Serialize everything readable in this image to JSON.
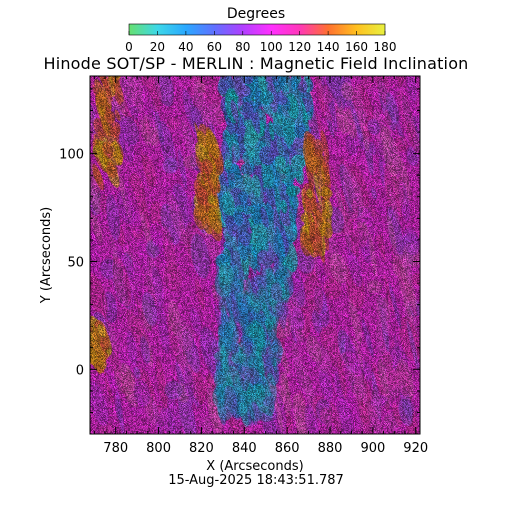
{
  "chart_data": {
    "type": "heatmap",
    "title": "Hinode SOT/SP - MERLIN : Magnetic Field Inclination",
    "xlabel": "X (Arcseconds)",
    "ylabel": "Y (Arcseconds)",
    "xlim": [
      768,
      922
    ],
    "ylim": [
      -30,
      136
    ],
    "x_ticks": [
      780,
      800,
      820,
      840,
      860,
      880,
      900,
      920
    ],
    "y_ticks": [
      0,
      50,
      100
    ],
    "colorbar": {
      "label": "Degrees",
      "range": [
        0,
        180
      ],
      "ticks": [
        0,
        20,
        40,
        60,
        80,
        100,
        120,
        140,
        160,
        180
      ],
      "colors": [
        "#66e070",
        "#3dd8e8",
        "#2aa8ff",
        "#6070ff",
        "#b040ff",
        "#ff30ff",
        "#ff38b8",
        "#ff7030",
        "#ffc020",
        "#e8f040"
      ]
    },
    "timestamp": "15-Aug-2025 18:43:51.787"
  }
}
